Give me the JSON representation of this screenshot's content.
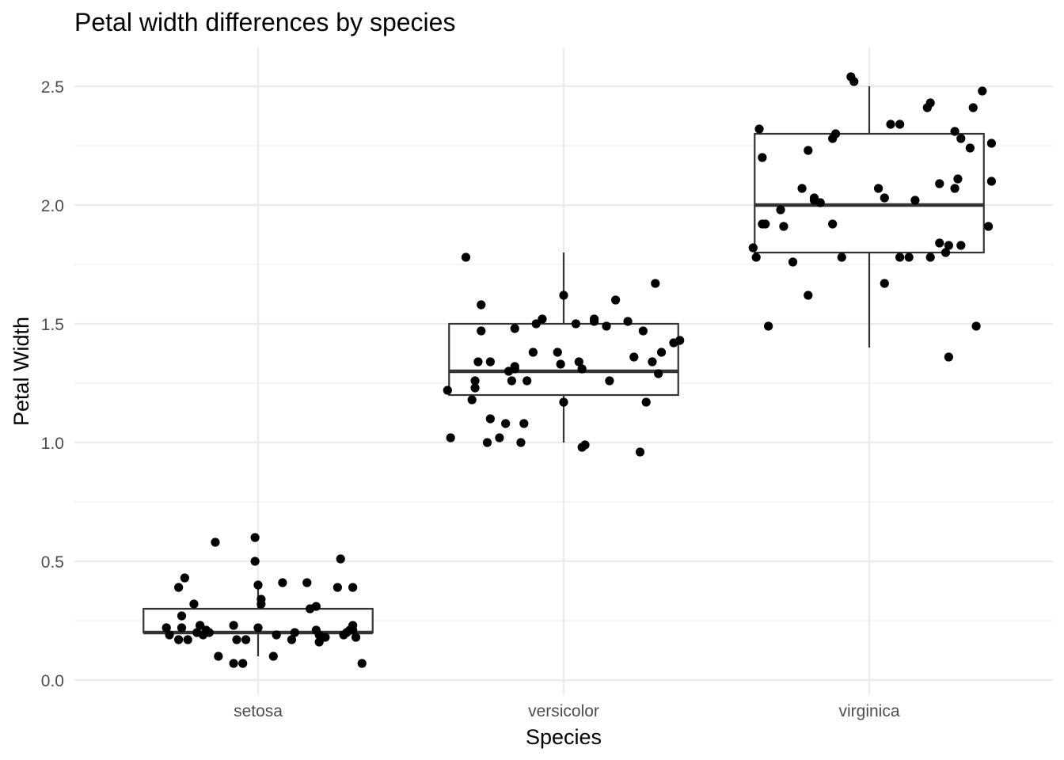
{
  "chart_data": {
    "type": "box",
    "title": "Petal width differences by species",
    "xlabel": "Species",
    "ylabel": "Petal Width",
    "categories": [
      "setosa",
      "versicolor",
      "virginica"
    ],
    "ylim": [
      -0.05,
      2.6
    ],
    "yticks": [
      0.0,
      0.5,
      1.0,
      1.5,
      2.0,
      2.5
    ],
    "ytick_labels": [
      "0.0",
      "0.5",
      "1.0",
      "1.5",
      "2.0",
      "2.5"
    ],
    "grid": true,
    "colors": {
      "box_stroke": "#333333",
      "point": "#000000",
      "grid": "#ebebeb",
      "tick_text": "#4d4d4d"
    },
    "boxes": [
      {
        "category": "setosa",
        "q1": 0.2,
        "median": 0.2,
        "q3": 0.3,
        "whisker_low": 0.1,
        "whisker_high": 0.4
      },
      {
        "category": "versicolor",
        "q1": 1.2,
        "median": 1.3,
        "q3": 1.5,
        "whisker_low": 1.0,
        "whisker_high": 1.8
      },
      {
        "category": "virginica",
        "q1": 1.8,
        "median": 2.0,
        "q3": 2.3,
        "whisker_low": 1.4,
        "whisker_high": 2.5
      }
    ],
    "points": [
      {
        "category": "setosa",
        "x": [
          0.7,
          0.71,
          0.74,
          0.74,
          0.75,
          0.75,
          0.76,
          0.77,
          0.79,
          0.8,
          0.81,
          0.81,
          0.82,
          0.83,
          0.84,
          0.86,
          0.87,
          0.92,
          0.92,
          0.93,
          0.95,
          0.96,
          0.99,
          0.99,
          1.0,
          1.0,
          1.01,
          1.01,
          1.05,
          1.06,
          1.08,
          1.11,
          1.12,
          1.16,
          1.17,
          1.19,
          1.19,
          1.2,
          1.2,
          1.22,
          1.26,
          1.27,
          1.28,
          1.29,
          1.3,
          1.31,
          1.31,
          1.31,
          1.32,
          1.34
        ],
        "y": [
          0.22,
          0.19,
          0.17,
          0.39,
          0.22,
          0.27,
          0.43,
          0.17,
          0.32,
          0.2,
          0.23,
          0.23,
          0.19,
          0.21,
          0.2,
          0.58,
          0.1,
          0.07,
          0.23,
          0.17,
          0.07,
          0.17,
          0.5,
          0.6,
          0.4,
          0.22,
          0.32,
          0.34,
          0.1,
          0.19,
          0.41,
          0.17,
          0.2,
          0.41,
          0.3,
          0.21,
          0.31,
          0.16,
          0.19,
          0.18,
          0.39,
          0.51,
          0.19,
          0.2,
          0.21,
          0.21,
          0.23,
          0.39,
          0.18,
          0.07
        ]
      },
      {
        "category": "versicolor",
        "x": [
          1.62,
          1.63,
          1.68,
          1.7,
          1.71,
          1.71,
          1.72,
          1.73,
          1.73,
          1.75,
          1.76,
          1.76,
          1.79,
          1.81,
          1.82,
          1.83,
          1.84,
          1.84,
          1.84,
          1.86,
          1.87,
          1.88,
          1.9,
          1.91,
          1.93,
          1.98,
          1.99,
          2.0,
          2.0,
          2.04,
          2.05,
          2.06,
          2.06,
          2.07,
          2.1,
          2.1,
          2.14,
          2.15,
          2.17,
          2.21,
          2.23,
          2.25,
          2.26,
          2.27,
          2.29,
          2.3,
          2.31,
          2.32,
          2.36,
          2.38
        ],
        "y": [
          1.22,
          1.02,
          1.78,
          1.18,
          1.23,
          1.26,
          1.34,
          1.47,
          1.58,
          1.0,
          1.34,
          1.1,
          1.02,
          1.08,
          1.3,
          1.26,
          1.48,
          1.32,
          1.31,
          1.0,
          1.08,
          1.26,
          1.38,
          1.5,
          1.52,
          1.38,
          1.33,
          1.62,
          1.17,
          1.5,
          1.34,
          0.98,
          1.31,
          0.99,
          1.51,
          1.52,
          1.49,
          1.26,
          1.6,
          1.51,
          1.36,
          0.96,
          1.47,
          1.17,
          1.34,
          1.67,
          1.29,
          1.38,
          1.42,
          1.43
        ]
      },
      {
        "category": "virginica",
        "x": [
          2.62,
          2.63,
          2.64,
          2.65,
          2.65,
          2.66,
          2.67,
          2.71,
          2.72,
          2.75,
          2.78,
          2.8,
          2.8,
          2.82,
          2.82,
          2.84,
          2.88,
          2.88,
          2.89,
          2.91,
          2.94,
          2.95,
          3.03,
          3.05,
          3.05,
          3.07,
          3.1,
          3.1,
          3.13,
          3.15,
          3.19,
          3.2,
          3.2,
          3.23,
          3.23,
          3.25,
          3.26,
          3.26,
          3.28,
          3.28,
          3.29,
          3.3,
          3.3,
          3.33,
          3.34,
          3.35,
          3.37,
          3.39,
          3.4,
          3.4
        ],
        "y": [
          1.82,
          1.78,
          2.32,
          1.92,
          2.2,
          1.92,
          1.49,
          1.98,
          1.91,
          1.76,
          2.07,
          1.62,
          2.23,
          2.03,
          2.02,
          2.01,
          1.92,
          2.28,
          2.3,
          1.78,
          2.54,
          2.52,
          2.07,
          1.67,
          2.03,
          2.34,
          1.78,
          2.34,
          1.78,
          2.02,
          2.41,
          1.78,
          2.43,
          2.09,
          1.84,
          1.8,
          1.83,
          1.36,
          2.31,
          2.07,
          2.11,
          2.28,
          1.83,
          2.24,
          2.41,
          1.49,
          2.48,
          1.91,
          2.26,
          2.1
        ]
      }
    ]
  }
}
